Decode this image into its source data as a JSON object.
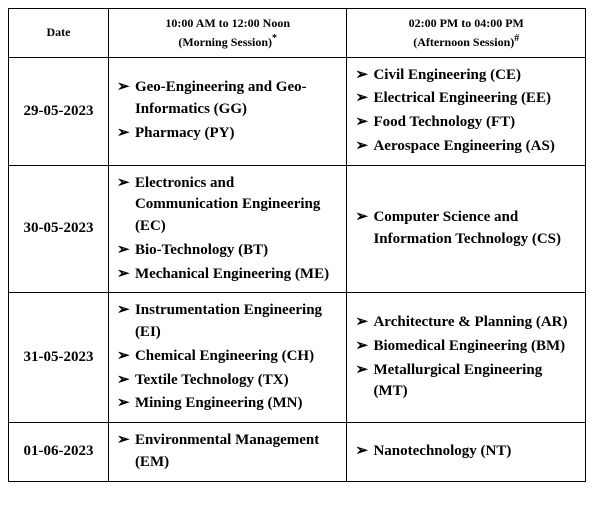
{
  "header": {
    "date": "Date",
    "morning_time": "10:00 AM to 12:00 Noon",
    "morning_label": "(Morning Session)",
    "morning_sup": "*",
    "afternoon_time": "02:00 PM to 04:00 PM",
    "afternoon_label": "(Afternoon Session)",
    "afternoon_sup": "#"
  },
  "bullet": "➢",
  "rows": [
    {
      "date": "29-05-2023",
      "morning": [
        "Geo-Engineering and Geo-Informatics (GG)",
        "Pharmacy (PY)"
      ],
      "afternoon": [
        "Civil Engineering (CE)",
        "Electrical Engineering (EE)",
        "Food Technology (FT)",
        "Aerospace Engineering (AS)"
      ]
    },
    {
      "date": "30-05-2023",
      "morning": [
        "Electronics and Communication Engineering (EC)",
        "Bio-Technology (BT)",
        "Mechanical Engineering (ME)"
      ],
      "afternoon": [
        "Computer Science and Information Technology (CS)"
      ]
    },
    {
      "date": "31-05-2023",
      "morning": [
        "Instrumentation Engineering (EI)",
        "Chemical Engineering (CH)",
        "Textile Technology (TX)",
        "Mining Engineering (MN)"
      ],
      "afternoon": [
        "Architecture & Planning (AR)",
        "Biomedical Engineering (BM)",
        "Metallurgical Engineering (MT)"
      ]
    },
    {
      "date": "01-06-2023",
      "morning": [
        "Environmental Management (EM)"
      ],
      "afternoon": [
        "Nanotechnology (NT)"
      ]
    }
  ]
}
